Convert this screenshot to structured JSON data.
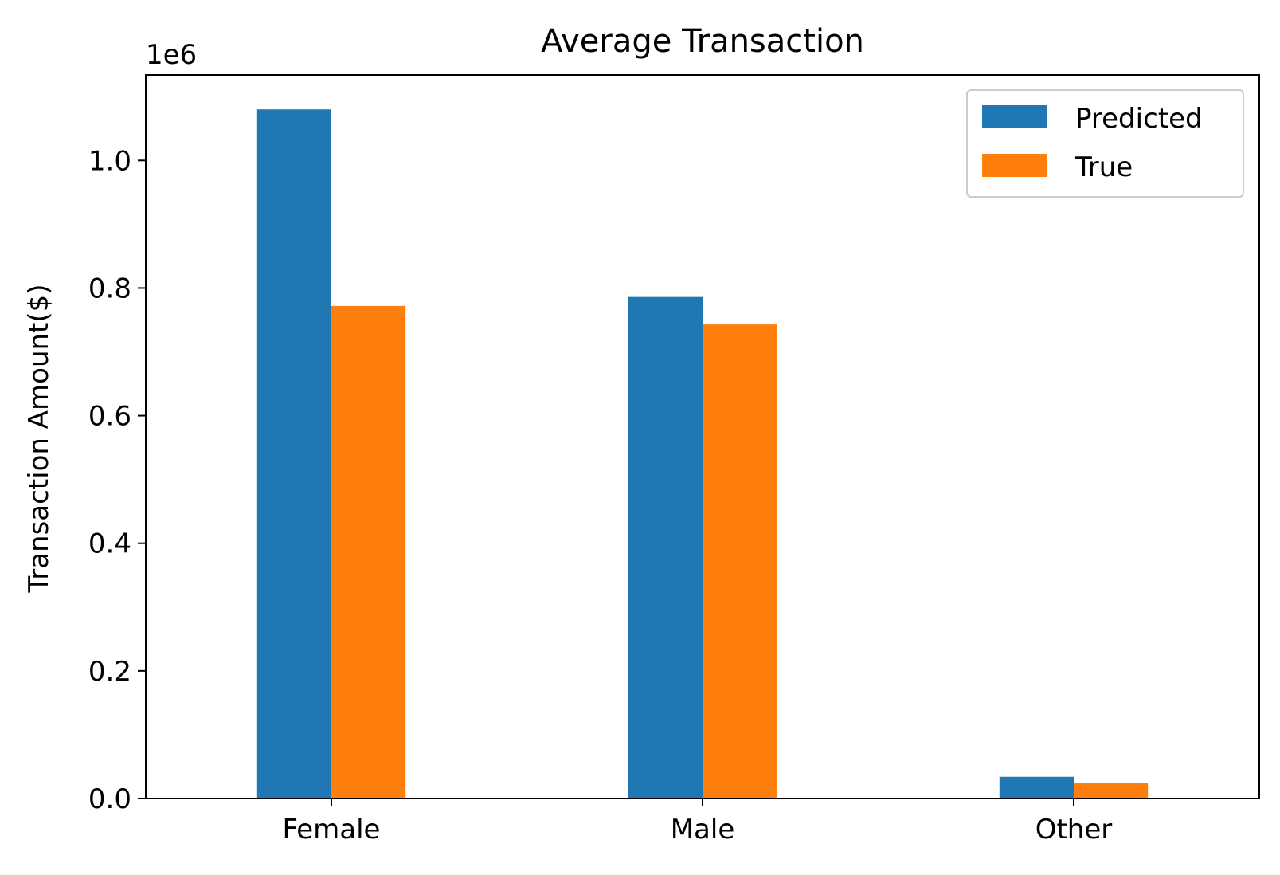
{
  "chart_data": {
    "type": "bar",
    "title": "Average Transaction",
    "xlabel": "",
    "ylabel": "Transaction Amount($)",
    "offset_label": "1e6",
    "categories": [
      "Female",
      "Male",
      "Other"
    ],
    "series": [
      {
        "name": "Predicted",
        "color": "#1f77b4",
        "values": [
          1080000,
          786000,
          34000
        ]
      },
      {
        "name": "True",
        "color": "#ff7f0e",
        "values": [
          772000,
          743000,
          24000
        ]
      }
    ],
    "ylim": [
      0,
      1134000
    ],
    "yticks": [
      0,
      200000,
      400000,
      600000,
      800000,
      1000000
    ],
    "ytick_labels": [
      "0.0",
      "0.2",
      "0.4",
      "0.6",
      "0.8",
      "1.0"
    ],
    "grid": false,
    "legend_position": "top-right"
  }
}
